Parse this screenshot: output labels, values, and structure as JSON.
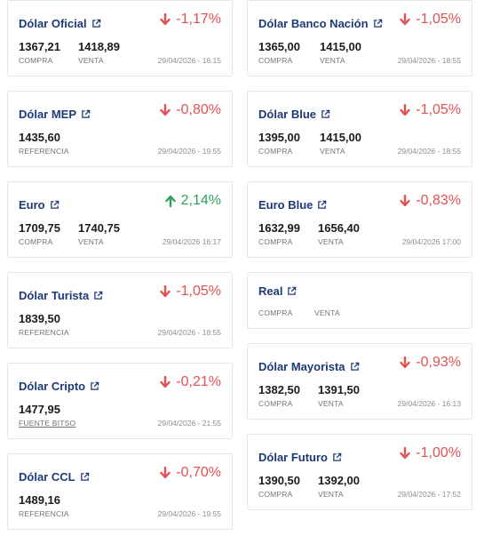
{
  "colors": {
    "title": "#1d3a78",
    "down": "#e35252",
    "up": "#2ea35a"
  },
  "cards": {
    "oficial": {
      "title": "Dólar Oficial",
      "change": "-1,17%",
      "buy": "1367,21",
      "sell": "1418,89",
      "buy_label": "COMPRA",
      "sell_label": "VENTA",
      "date": "29/04/2026 - 16:15"
    },
    "nacion": {
      "title": "Dólar Banco Nación",
      "change": "-1,05%",
      "buy": "1365,00",
      "sell": "1415,00",
      "buy_label": "COMPRA",
      "sell_label": "VENTA",
      "date": "29/04/2026 - 18:55"
    },
    "mep": {
      "title": "Dólar MEP",
      "change": "-0,80%",
      "value": "1435,60",
      "value_label": "REFERENCIA",
      "date": "29/04/2026 - 19:55"
    },
    "blue": {
      "title": "Dólar Blue",
      "change": "-1,05%",
      "buy": "1395,00",
      "sell": "1415,00",
      "buy_label": "COMPRA",
      "sell_label": "VENTA",
      "date": "29/04/2026 - 18:55"
    },
    "euro": {
      "title": "Euro",
      "change": "2,14%",
      "buy": "1709,75",
      "sell": "1740,75",
      "buy_label": "COMPRA",
      "sell_label": "VENTA",
      "date": "29/04/2026 16:17"
    },
    "euroblue": {
      "title": "Euro Blue",
      "change": "-0,83%",
      "buy": "1632,99",
      "sell": "1656,40",
      "buy_label": "COMPRA",
      "sell_label": "VENTA",
      "date": "29/04/2026 17:00"
    },
    "turista": {
      "title": "Dólar Turista",
      "change": "-1,05%",
      "value": "1839,50",
      "value_label": "REFERENCIA",
      "date": "29/04/2026 - 18:55"
    },
    "real": {
      "title": "Real",
      "buy_label": "COMPRA",
      "sell_label": "VENTA"
    },
    "cripto": {
      "title": "Dólar Cripto",
      "change": "-0,21%",
      "value": "1477,95",
      "value_label": "FUENTE BITSO",
      "date": "29/04/2026 - 21:55"
    },
    "mayorista": {
      "title": "Dólar Mayorista",
      "change": "-0,93%",
      "buy": "1382,50",
      "sell": "1391,50",
      "buy_label": "COMPRA",
      "sell_label": "VENTA",
      "date": "29/04/2026 - 16:13"
    },
    "ccl": {
      "title": "Dólar CCL",
      "change": "-0,70%",
      "value": "1489,16",
      "value_label": "REFERENCIA",
      "date": "29/04/2026 - 19:55"
    },
    "futuro": {
      "title": "Dólar Futuro",
      "change": "-1,00%",
      "buy": "1390,50",
      "sell": "1392,00",
      "buy_label": "COMPRA",
      "sell_label": "VENTA",
      "date": "29/04/2026 - 17:52"
    }
  }
}
